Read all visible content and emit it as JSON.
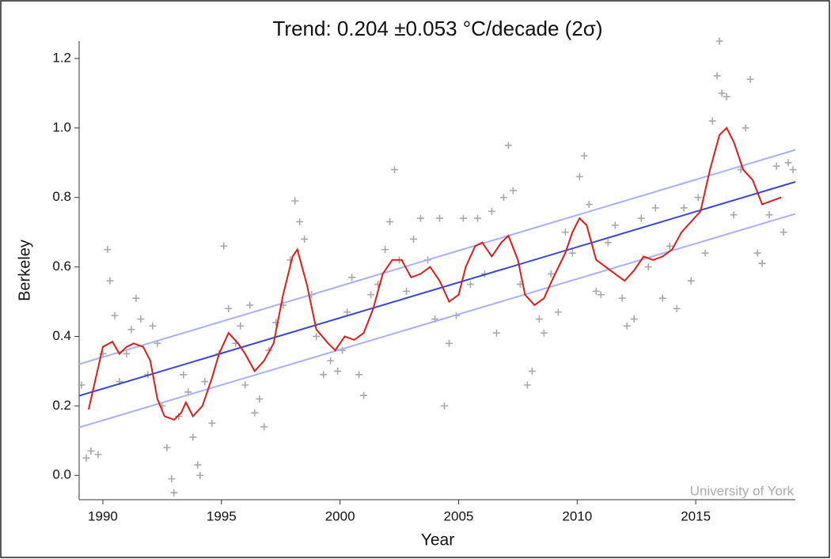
{
  "chart_data": {
    "type": "scatter",
    "title": "Trend: 0.204 ±0.053 °C/decade (2σ)",
    "x_label": "Year",
    "y_label": "Berkeley",
    "annotation": "University of York",
    "xlim": [
      1989,
      2019.2
    ],
    "ylim": [
      -0.07,
      1.25
    ],
    "xticks": [
      1990,
      1995,
      2000,
      2005,
      2010,
      2015
    ],
    "yticks": [
      {
        "value": 0,
        "label": "0.0"
      },
      0.2,
      0.4,
      0.6,
      0.8,
      {
        "value": 1,
        "label": "1.0"
      },
      1.2
    ],
    "series": [
      {
        "style": "markers",
        "color": "#a8a8a8",
        "x": [
          1989.1,
          1989.3,
          1989.5,
          1989.8,
          1990.0,
          1990.2,
          1990.3,
          1990.5,
          1990.7,
          1991.0,
          1991.2,
          1991.4,
          1991.6,
          1991.9,
          1992.1,
          1992.3,
          1992.5,
          1992.7,
          1992.9,
          1993.0,
          1993.2,
          1993.4,
          1993.6,
          1993.8,
          1994.0,
          1994.1,
          1994.3,
          1994.6,
          1994.9,
          1995.1,
          1995.3,
          1995.6,
          1995.8,
          1996.0,
          1996.2,
          1996.4,
          1996.6,
          1996.8,
          1997.0,
          1997.3,
          1997.6,
          1997.9,
          1998.1,
          1998.3,
          1998.5,
          1998.8,
          1999.0,
          1999.3,
          1999.6,
          1999.9,
          2000.1,
          2000.3,
          2000.5,
          2000.8,
          2001.0,
          2001.3,
          2001.6,
          2001.9,
          2002.1,
          2002.3,
          2002.5,
          2002.8,
          2003.1,
          2003.4,
          2003.7,
          2004.0,
          2004.2,
          2004.4,
          2004.6,
          2004.9,
          2005.2,
          2005.5,
          2005.8,
          2006.1,
          2006.4,
          2006.6,
          2006.9,
          2007.1,
          2007.3,
          2007.6,
          2007.9,
          2008.1,
          2008.4,
          2008.6,
          2008.9,
          2009.2,
          2009.5,
          2009.8,
          2010.1,
          2010.3,
          2010.5,
          2010.8,
          2011.0,
          2011.3,
          2011.6,
          2011.9,
          2012.1,
          2012.4,
          2012.7,
          2013.0,
          2013.3,
          2013.6,
          2013.9,
          2014.2,
          2014.5,
          2014.8,
          2015.1,
          2015.4,
          2015.7,
          2015.9,
          2016.0,
          2016.1,
          2016.3,
          2016.6,
          2016.9,
          2017.1,
          2017.3,
          2017.6,
          2017.8,
          2018.1,
          2018.4,
          2018.7,
          2018.9,
          2019.1
        ],
        "values": [
          0.26,
          0.05,
          0.07,
          0.06,
          0.35,
          0.65,
          0.56,
          0.46,
          0.27,
          0.35,
          0.42,
          0.51,
          0.45,
          0.29,
          0.43,
          0.38,
          0.2,
          0.08,
          -0.01,
          -0.05,
          0.17,
          0.29,
          0.24,
          0.11,
          0.03,
          0.0,
          0.27,
          0.15,
          0.35,
          0.66,
          0.48,
          0.38,
          0.43,
          0.26,
          0.49,
          0.18,
          0.22,
          0.14,
          0.36,
          0.44,
          0.49,
          0.62,
          0.79,
          0.73,
          0.68,
          0.52,
          0.4,
          0.29,
          0.33,
          0.3,
          0.36,
          0.47,
          0.57,
          0.29,
          0.23,
          0.52,
          0.55,
          0.65,
          0.73,
          0.88,
          0.62,
          0.53,
          0.68,
          0.74,
          0.62,
          0.45,
          0.74,
          0.2,
          0.38,
          0.46,
          0.74,
          0.55,
          0.74,
          0.58,
          0.76,
          0.41,
          0.8,
          0.95,
          0.82,
          0.55,
          0.26,
          0.3,
          0.45,
          0.41,
          0.58,
          0.47,
          0.7,
          0.64,
          0.86,
          0.92,
          0.78,
          0.53,
          0.52,
          0.67,
          0.72,
          0.51,
          0.43,
          0.45,
          0.74,
          0.6,
          0.77,
          0.51,
          0.66,
          0.48,
          0.77,
          0.56,
          0.8,
          0.64,
          1.02,
          1.15,
          1.25,
          1.1,
          1.09,
          0.75,
          0.88,
          1.0,
          1.14,
          0.64,
          0.61,
          0.75,
          0.89,
          0.7,
          0.9,
          0.88
        ]
      },
      {
        "style": "line",
        "color": "#a9b0f2",
        "x": [
          1989,
          2019.2
        ],
        "values": [
          0.32,
          0.937
        ]
      },
      {
        "style": "line",
        "color": "#a9b0f2",
        "x": [
          1989,
          2019.2
        ],
        "values": [
          0.138,
          0.753
        ]
      },
      {
        "style": "line",
        "color": "#3a45d8",
        "x": [
          1989,
          2019.2
        ],
        "values": [
          0.229,
          0.845
        ]
      },
      {
        "style": "line",
        "color": "#e01b1b",
        "x": [
          1989.4,
          1989.6,
          1990,
          1990.4,
          1990.7,
          1991,
          1991.3,
          1991.7,
          1992,
          1992.3,
          1992.6,
          1993,
          1993.3,
          1993.5,
          1993.8,
          1994.2,
          1994.6,
          1994.9,
          1995.3,
          1995.7,
          1996,
          1996.4,
          1996.8,
          1997.2,
          1997.6,
          1998,
          1998.2,
          1998.6,
          1999,
          1999.5,
          1999.8,
          2000.2,
          2000.6,
          2001,
          2001.4,
          2001.8,
          2002.2,
          2002.6,
          2003,
          2003.4,
          2003.8,
          2004.2,
          2004.6,
          2005,
          2005.3,
          2005.7,
          2006,
          2006.4,
          2006.8,
          2007.1,
          2007.5,
          2007.8,
          2008.2,
          2008.6,
          2009,
          2009.5,
          2009.8,
          2010.1,
          2010.4,
          2010.8,
          2011.2,
          2011.6,
          2012,
          2012.4,
          2012.8,
          2013.2,
          2013.6,
          2014,
          2014.4,
          2014.8,
          2015.2,
          2015.6,
          2016,
          2016.3,
          2016.6,
          2017,
          2017.4,
          2017.8,
          2018.2,
          2018.6
        ],
        "values": [
          0.19,
          0.25,
          0.37,
          0.385,
          0.35,
          0.37,
          0.38,
          0.37,
          0.33,
          0.22,
          0.17,
          0.16,
          0.18,
          0.21,
          0.17,
          0.2,
          0.28,
          0.35,
          0.41,
          0.38,
          0.35,
          0.3,
          0.33,
          0.38,
          0.52,
          0.63,
          0.65,
          0.55,
          0.42,
          0.38,
          0.36,
          0.4,
          0.39,
          0.41,
          0.48,
          0.58,
          0.62,
          0.62,
          0.57,
          0.58,
          0.6,
          0.56,
          0.5,
          0.52,
          0.6,
          0.66,
          0.67,
          0.63,
          0.67,
          0.69,
          0.62,
          0.52,
          0.49,
          0.51,
          0.57,
          0.64,
          0.7,
          0.74,
          0.72,
          0.62,
          0.6,
          0.58,
          0.56,
          0.59,
          0.63,
          0.62,
          0.63,
          0.65,
          0.7,
          0.73,
          0.76,
          0.88,
          0.98,
          1.0,
          0.96,
          0.88,
          0.85,
          0.78,
          0.79,
          0.8
        ]
      }
    ]
  }
}
